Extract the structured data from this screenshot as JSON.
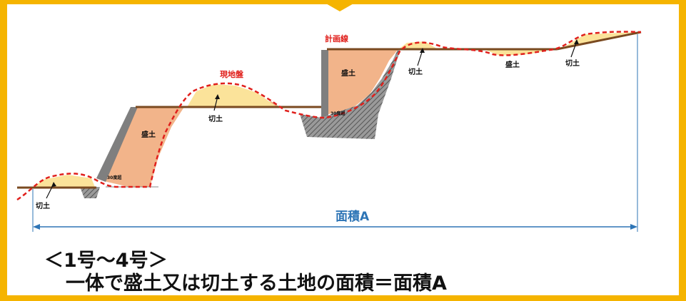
{
  "labels": {
    "plan_line": "計画線",
    "existing_ground": "現地盤",
    "cut": "切土",
    "fill": "盛土",
    "slope_30": "30度超",
    "area_a": "面積A"
  },
  "caption": {
    "line1": "＜1号～4号＞",
    "line2": "一体で盛土又は切土する土地の面積＝面積A"
  },
  "colors": {
    "border": "#f5b400",
    "fill_soil": "#f2b48a",
    "cut_soil": "#fbe39a",
    "wall": "#7f7f7f",
    "plan_line": "#7a4a20",
    "ground_line": "#e0201c",
    "dimension": "#2e75b6"
  }
}
